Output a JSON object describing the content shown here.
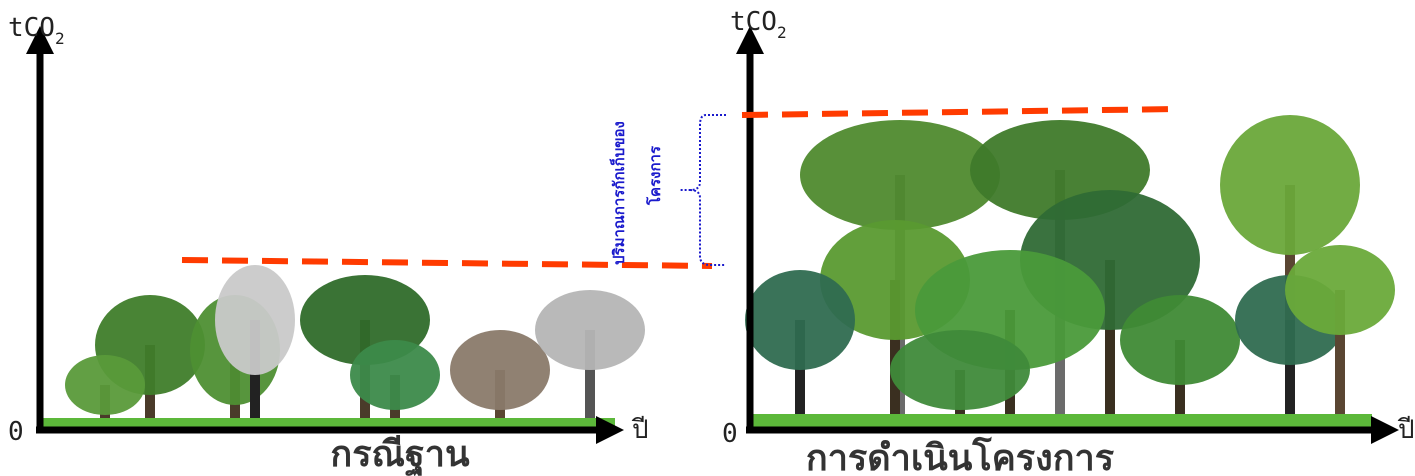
{
  "left_panel": {
    "y_label": "tCO",
    "y_subscript": "2",
    "origin": "0",
    "x_label": "ปี",
    "caption": "กรณีฐาน"
  },
  "right_panel": {
    "y_label": "tCO",
    "y_subscript": "2",
    "origin": "0",
    "x_label": "ปี",
    "caption": "การดำเนินโครงการ"
  },
  "annotation": {
    "lines": [
      "ปริมาณการกักเก็บของ",
      "โครงการ"
    ]
  }
}
